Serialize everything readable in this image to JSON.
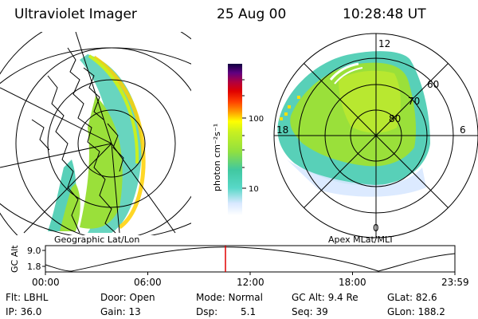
{
  "header": {
    "title": "Ultraviolet Imager",
    "date": "25 Aug 00",
    "time": "10:28:48 UT"
  },
  "left_panel": {
    "caption": "Geographic Lat/Lon"
  },
  "right_panel": {
    "caption": "Apex MLat/MLT",
    "mlt_labels": {
      "top": "12",
      "left": "18",
      "right": "6",
      "bottom": "0"
    },
    "lat_labels": [
      "60",
      "70",
      "80"
    ]
  },
  "colorbar": {
    "unit": "photon cm⁻²s⁻¹",
    "ticks": [
      "100",
      "10"
    ],
    "scale": "log"
  },
  "orbit_plot": {
    "ylabel": "GC Alt",
    "yticks": [
      "9.0",
      "1.8"
    ],
    "xticks": [
      "00:00",
      "06:00",
      "12:00",
      "18:00",
      "23:59"
    ],
    "marker_color": "#e00000"
  },
  "info": {
    "filter": "Flt: LBHL",
    "ip": "IP: 36.0",
    "door": "Door: Open",
    "gain": "Gain: 13",
    "mode": "Mode: Normal",
    "dsp_label": "Dsp:",
    "dsp_value": "5.1",
    "gc_alt": "GC Alt: 9.4 Re",
    "seq": "Seq: 39",
    "glat": "GLat:  82.6",
    "glon": "GLon: 188.2"
  },
  "colors": {
    "background": "#ffffff",
    "low": "#e8f0ff",
    "mid": "#58d0b8",
    "high": "#b8e830",
    "peak": "#ffd000"
  }
}
